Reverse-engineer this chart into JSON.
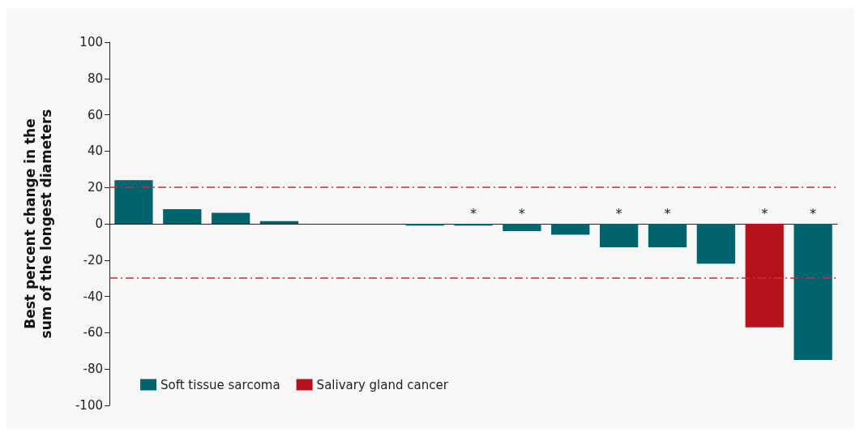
{
  "chart_data": {
    "type": "bar",
    "ylabel": "Best percent change in the\nsum of the longest diameters",
    "categories": [
      null,
      null,
      null,
      null,
      null,
      null,
      null,
      null,
      null,
      null,
      null,
      null,
      null,
      null,
      null
    ],
    "series": [
      {
        "name": "Soft tissue sarcoma",
        "color": "#00646e",
        "values": [
          24,
          8,
          6,
          1.5,
          0,
          0,
          -1,
          -1,
          -4,
          -6,
          -13,
          -13,
          -22,
          null,
          -75
        ],
        "value_labels": [
          null,
          null,
          null,
          null,
          null,
          null,
          null,
          "*",
          "*",
          null,
          "*",
          "*",
          null,
          null,
          "*"
        ]
      },
      {
        "name": "Salivary gland cancer",
        "color": "#b5121b",
        "values": [
          null,
          null,
          null,
          null,
          null,
          null,
          null,
          null,
          null,
          null,
          null,
          null,
          null,
          -57,
          null
        ],
        "value_labels": [
          null,
          null,
          null,
          null,
          null,
          null,
          null,
          null,
          null,
          null,
          null,
          null,
          null,
          "*",
          null
        ]
      }
    ],
    "stacked": true,
    "ylim": [
      -100,
      100
    ],
    "yticks": [
      -100,
      -80,
      -60,
      -40,
      -20,
      0,
      20,
      40,
      60,
      80,
      100
    ],
    "ref_lines": [
      {
        "axis": "y",
        "value": 20,
        "color": "#e0262b",
        "line_style": "dashed"
      },
      {
        "axis": "y",
        "value": -30,
        "color": "#e0262b",
        "line_style": "dashed"
      }
    ],
    "grid": false,
    "legend": "bottom left"
  }
}
